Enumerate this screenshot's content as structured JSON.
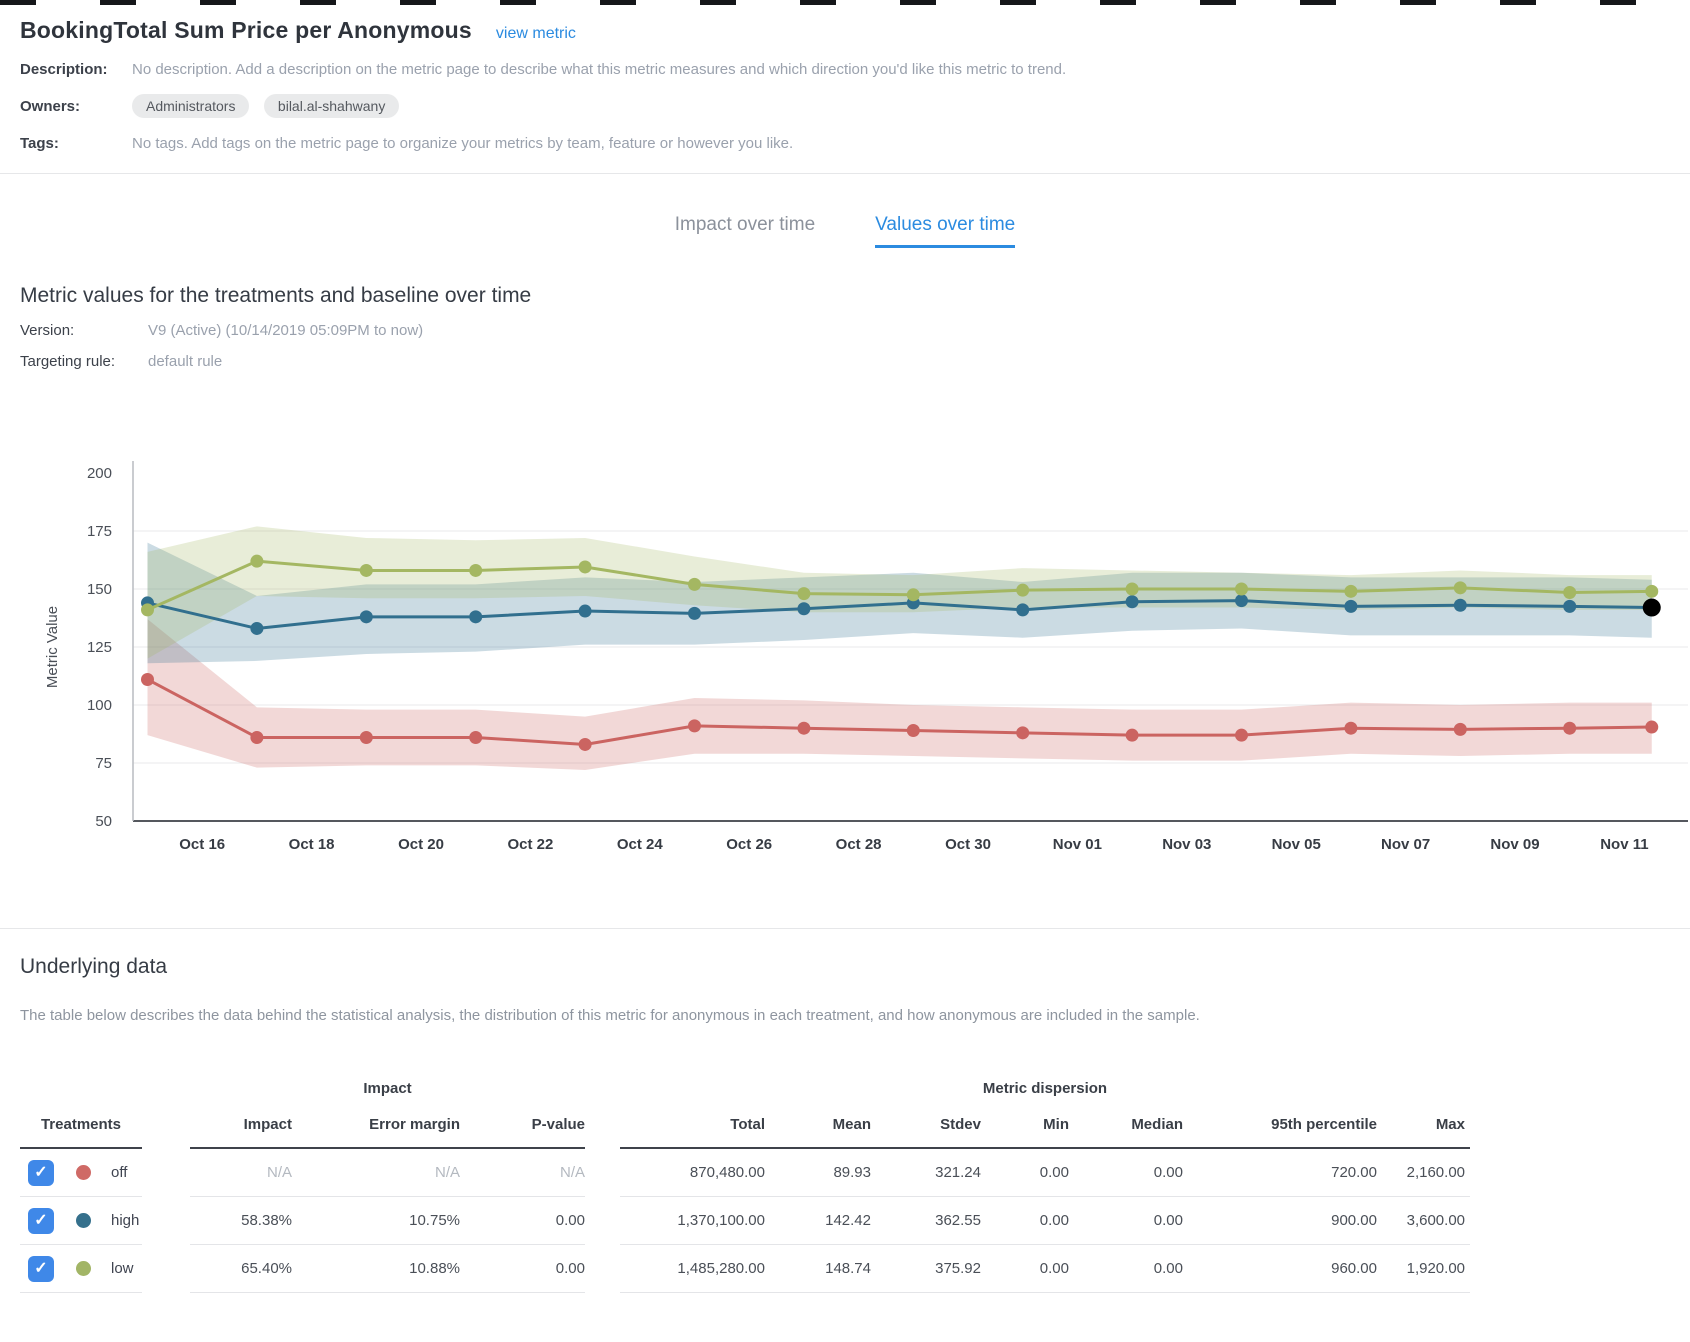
{
  "header": {
    "title": "BookingTotal Sum Price per Anonymous",
    "view_metric": "view metric",
    "description_label": "Description:",
    "description_text": "No description. Add a description on the metric page to describe what this metric measures and which direction you'd like this metric to trend.",
    "owners_label": "Owners:",
    "owner_pills": [
      "Administrators",
      "bilal.al-shahwany"
    ],
    "tags_label": "Tags:",
    "tags_text": "No tags. Add tags on the metric page to organize your metrics by team, feature or however you like."
  },
  "tabs": {
    "impact": "Impact over time",
    "values": "Values over time"
  },
  "section": {
    "heading": "Metric values for the treatments and baseline over time",
    "version_label": "Version:",
    "version_value": "V9 (Active) (10/14/2019 05:09PM to now)",
    "targeting_label": "Targeting rule:",
    "targeting_value": "default rule"
  },
  "chart_data": {
    "type": "line",
    "title": "Metric values for the treatments and baseline over time",
    "ylabel": "Metric Value",
    "ylim": [
      50,
      200
    ],
    "yticks": [
      200,
      175,
      150,
      125,
      100,
      75,
      50
    ],
    "grid": true,
    "xtick_labels": [
      "Oct 16",
      "Oct 18",
      "Oct 20",
      "Oct 22",
      "Oct 24",
      "Oct 26",
      "Oct 28",
      "Oct 30",
      "Nov 01",
      "Nov 03",
      "Nov 05",
      "Nov 07",
      "Nov 09",
      "Nov 11"
    ],
    "tick_day_offsets": [
      1,
      3,
      5,
      7,
      9,
      11,
      13,
      15,
      17,
      19,
      21,
      23,
      25,
      27
    ],
    "x_dates": [
      "Oct 15",
      "Oct 17",
      "Oct 19",
      "Oct 21",
      "Oct 23",
      "Oct 25",
      "Oct 27",
      "Oct 29",
      "Oct 31",
      "Nov 02",
      "Nov 04",
      "Nov 06",
      "Nov 08",
      "Nov 10",
      "Nov 11"
    ],
    "x_day_offsets": [
      0,
      2,
      4,
      6,
      8,
      10,
      12,
      14,
      16,
      18,
      20,
      22,
      24,
      26,
      27.5
    ],
    "series": [
      {
        "name": "off",
        "color": "#cb6461",
        "values": [
          111,
          86,
          86,
          86,
          83,
          91,
          90,
          89,
          88,
          87,
          87,
          90,
          89.5,
          90,
          90.5
        ],
        "band_lo": [
          87,
          73,
          74,
          74,
          72,
          79,
          79,
          78,
          77,
          76,
          76,
          79,
          78,
          79,
          79
        ],
        "band_hi": [
          137,
          99,
          98,
          98,
          95,
          103,
          102,
          100,
          99,
          98,
          98,
          101,
          100,
          101,
          101
        ]
      },
      {
        "name": "high",
        "color": "#316f8e",
        "values": [
          144,
          133,
          138,
          138,
          140.5,
          139.5,
          141.5,
          144,
          141,
          144.5,
          145,
          142.5,
          143,
          142.5,
          142
        ],
        "band_lo": [
          118,
          119,
          122,
          123,
          126,
          126,
          128,
          131,
          129,
          132,
          133,
          130,
          130,
          130,
          129
        ],
        "band_hi": [
          170,
          147,
          152,
          152,
          155,
          153,
          155,
          157,
          153,
          157,
          157,
          155,
          155,
          155,
          154
        ]
      },
      {
        "name": "low",
        "color": "#a4b762",
        "values": [
          141,
          162,
          158,
          158,
          159.5,
          152,
          148,
          147.5,
          149.5,
          150,
          150,
          149,
          150.5,
          148.5,
          149
        ],
        "band_lo": [
          120,
          147,
          146,
          146,
          147,
          143,
          140,
          140,
          142,
          142,
          142,
          141,
          142,
          141,
          141
        ],
        "band_hi": [
          166,
          177,
          172,
          171,
          172,
          164,
          157,
          156,
          159,
          158,
          157,
          156,
          158,
          156,
          156
        ]
      }
    ],
    "highlight": {
      "series": "high",
      "point_index": 14,
      "color": "#000000"
    },
    "legend_position": "none"
  },
  "underlying": {
    "heading": "Underlying data",
    "description": "The table below describes the data behind the statistical analysis, the distribution of this metric for anonymous in each treatment, and how anonymous are included in the sample."
  },
  "table": {
    "group_impact": "Impact",
    "group_dispersion": "Metric dispersion",
    "treatments_header": "Treatments",
    "impact_cols": [
      "Impact",
      "Error margin",
      "P-value"
    ],
    "dispersion_cols": [
      "Total",
      "Mean",
      "Stdev",
      "Min",
      "Median",
      "95th percentile",
      "Max"
    ],
    "rows": [
      {
        "name": "off",
        "color": "#cf6a66",
        "checked": true,
        "impact": [
          "N/A",
          "N/A",
          "N/A"
        ],
        "dispersion": [
          "870,480.00",
          "89.93",
          "321.24",
          "0.00",
          "0.00",
          "720.00",
          "2,160.00"
        ]
      },
      {
        "name": "high",
        "color": "#35708c",
        "checked": true,
        "impact": [
          "58.38%",
          "10.75%",
          "0.00"
        ],
        "dispersion": [
          "1,370,100.00",
          "142.42",
          "362.55",
          "0.00",
          "0.00",
          "900.00",
          "3,600.00"
        ]
      },
      {
        "name": "low",
        "color": "#a2b566",
        "checked": true,
        "impact": [
          "65.40%",
          "10.88%",
          "0.00"
        ],
        "dispersion": [
          "1,485,280.00",
          "148.74",
          "375.92",
          "0.00",
          "0.00",
          "960.00",
          "1,920.00"
        ]
      }
    ]
  }
}
